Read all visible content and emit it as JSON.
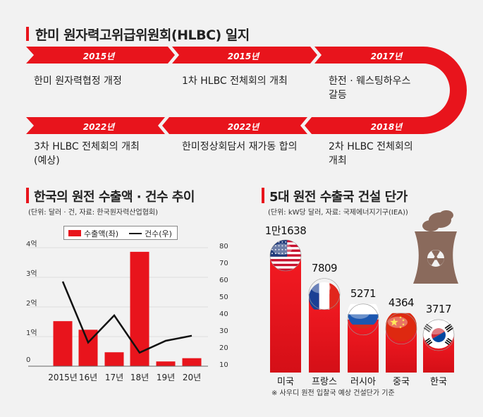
{
  "timeline": {
    "title": "한미 원자력고위급위원회(HLBC) 일지",
    "items": [
      {
        "year": "2015년",
        "event": "한미 원자력협정 개정"
      },
      {
        "year": "2015년",
        "event": "1차 HLBC 전체회의 개최"
      },
      {
        "year": "2017년",
        "event": "한전 · 웨스팅하우스\n갈등"
      },
      {
        "year": "2018년",
        "event": "2차 HLBC 전체회의\n개최"
      },
      {
        "year": "2022년",
        "event": "한미정상회담서 재가동 합의"
      },
      {
        "year": "2022년",
        "event": "3차 HLBC 전체회의 개최\n(예상)"
      }
    ]
  },
  "chart_data": [
    {
      "type": "bar",
      "title": "한국의 원전 수출액 · 건수 추이",
      "subtitle": "(단위: 달러 · 건, 자료: 한국원자력산업협회)",
      "categories": [
        "2015년",
        "16년",
        "17년",
        "18년",
        "19년",
        "20년"
      ],
      "left_ticks": [
        "0",
        "1억",
        "2억",
        "3억",
        "4억"
      ],
      "right_ticks": [
        "10",
        "20",
        "30",
        "40",
        "50",
        "60",
        "70",
        "80"
      ],
      "ylim": [
        0,
        4
      ],
      "y2lim": [
        10,
        80
      ],
      "series": [
        {
          "name": "수출액(좌)",
          "type": "bar",
          "color": "#e8141c",
          "values": [
            1.52,
            1.23,
            0.47,
            3.86,
            0.16,
            0.27
          ]
        },
        {
          "name": "건수(우)",
          "type": "line",
          "color": "#111111",
          "values": [
            60,
            24,
            40,
            18,
            25,
            28
          ]
        }
      ],
      "legend": "top"
    },
    {
      "type": "bar",
      "title": "5대 원전 수출국 건설 단가",
      "subtitle": "(단위: kW당 달러, 자료: 국제에너지기구(IEA))",
      "categories": [
        "미국",
        "프랑스",
        "러시아",
        "중국",
        "한국"
      ],
      "value_labels": [
        "1만1638",
        "7809",
        "5271",
        "4364",
        "3717"
      ],
      "values": [
        11638,
        7809,
        5271,
        4364,
        3717
      ],
      "flags": [
        "us-flag",
        "france-flag",
        "russia-flag",
        "china-flag",
        "korea-flag"
      ],
      "footnote": "※ 사우디 원전 입찰국 예상 건설단가 기준"
    }
  ]
}
